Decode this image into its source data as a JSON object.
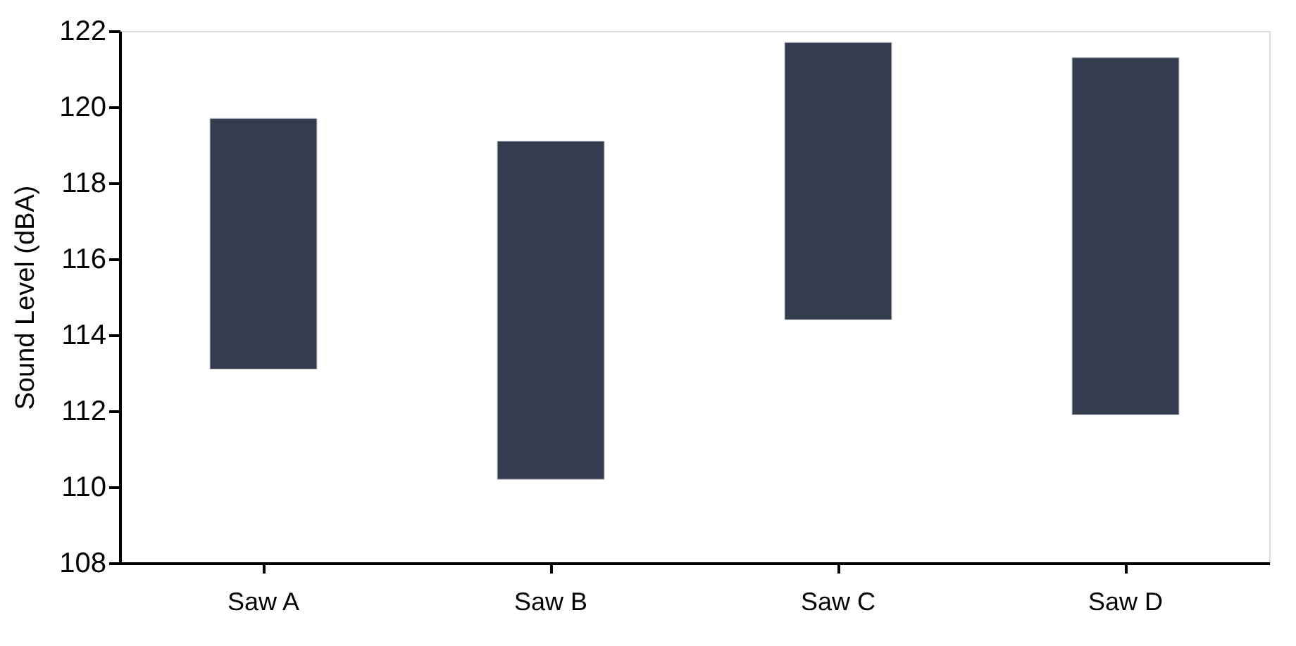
{
  "chart_data": {
    "type": "bar",
    "ylabel": "Sound Level (dBA)",
    "categories": [
      "Saw A",
      "Saw B",
      "Saw C",
      "Saw D"
    ],
    "base": [
      113.1,
      110.2,
      114.4,
      111.9
    ],
    "values": [
      6.6,
      8.9,
      7.3,
      9.4
    ],
    "color": "#333d4f",
    "ylim": [
      108,
      122
    ],
    "yticks": [
      108,
      110,
      112,
      114,
      116,
      118,
      120,
      122
    ],
    "grid": false
  }
}
